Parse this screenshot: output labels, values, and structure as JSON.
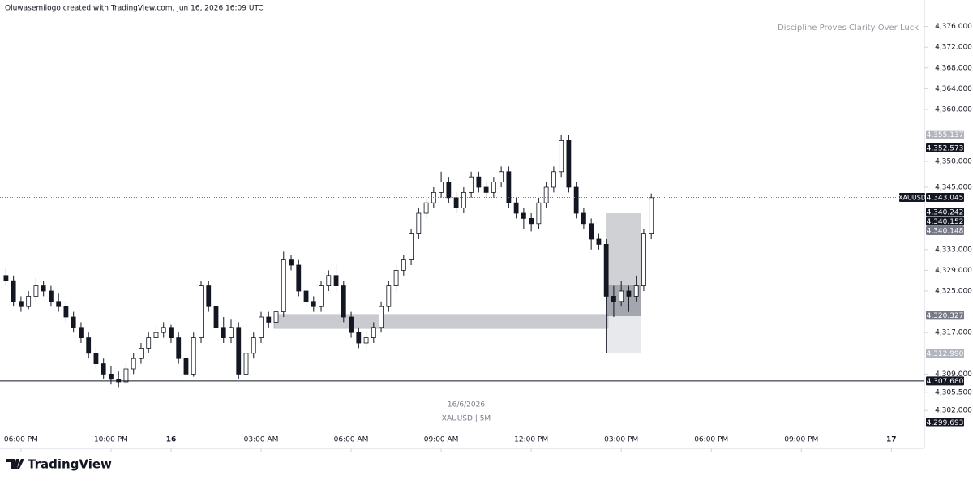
{
  "chart_data": {
    "type": "candlestick",
    "header": "Oluwasemilogo created with TradingView.com, Jun 16, 2026 16:09 UTC",
    "watermark": "Discipline Proves Clarity Over Luck",
    "date_label": "16/6/2026",
    "symbol_label": "XAUUSD | 5M",
    "symbol": "XAUUSD",
    "brand": "TradingView",
    "up_color": "#ffffff",
    "down_color": "#131722",
    "grid": false,
    "ylim": [
      4295.47,
      4381.09
    ],
    "xlim": [
      -0.8,
      122.4
    ],
    "yticks": [
      {
        "value": 4376,
        "label": "4,376.000"
      },
      {
        "value": 4372,
        "label": "4,372.000"
      },
      {
        "value": 4368,
        "label": "4,368.000"
      },
      {
        "value": 4364,
        "label": "4,364.000"
      },
      {
        "value": 4360,
        "label": "4,360.000"
      },
      {
        "value": 4350,
        "label": "4,350.000"
      },
      {
        "value": 4345,
        "label": "4,345.000"
      },
      {
        "value": 4333,
        "label": "4,333.000"
      },
      {
        "value": 4329,
        "label": "4,329.000"
      },
      {
        "value": 4325,
        "label": "4,325.000"
      },
      {
        "value": 4317,
        "label": "4,317.000"
      },
      {
        "value": 4309,
        "label": "4,309.000"
      },
      {
        "value": 4305.5,
        "label": "4,305.500"
      },
      {
        "value": 4302,
        "label": "4,302.000"
      }
    ],
    "xticks": [
      {
        "value": 2,
        "label": "06:00 PM"
      },
      {
        "value": 14,
        "label": "10:00 PM"
      },
      {
        "value": 22,
        "label": "16"
      },
      {
        "value": 34,
        "label": "03:00 AM"
      },
      {
        "value": 46,
        "label": "06:00 AM"
      },
      {
        "value": 58,
        "label": "09:00 AM"
      },
      {
        "value": 70,
        "label": "12:00 PM"
      },
      {
        "value": 82,
        "label": "03:00 PM"
      },
      {
        "value": 94,
        "label": "06:00 PM"
      },
      {
        "value": 106,
        "label": "09:00 PM"
      },
      {
        "value": 118,
        "label": "17"
      }
    ],
    "price_labels": [
      {
        "value": 4355.137,
        "label": "4,355.137",
        "bg": "#b2b5be"
      },
      {
        "value": 4352.573,
        "label": "4,352.573",
        "bg": "#131722",
        "line": "solid"
      },
      {
        "value": 4343.045,
        "label": "4,343.045",
        "bg": "#131722",
        "line": "dotted"
      },
      {
        "value": 4340.242,
        "label": "4,340.242",
        "bg": "#131722",
        "line": "solid"
      },
      {
        "value": 4340.152,
        "label": "4,340.152",
        "bg": "#131722"
      },
      {
        "value": 4340.148,
        "label": "4,340.148",
        "bg": "#787b86"
      },
      {
        "value": 4320.327,
        "label": "4,320.327",
        "bg": "#787b86"
      },
      {
        "value": 4312.99,
        "label": "4,312.990",
        "bg": "#b2b5be"
      },
      {
        "value": 4307.68,
        "label": "4,307.680",
        "bg": "#131722",
        "line": "solid"
      },
      {
        "value": 4299.693,
        "label": "4,299.693",
        "bg": "#131722"
      }
    ],
    "candles": [
      [
        4328,
        4329.5,
        4326,
        4327
      ],
      [
        4327,
        4328,
        4322,
        4323
      ],
      [
        4323,
        4324,
        4321,
        4322
      ],
      [
        4322,
        4325,
        4321.5,
        4324
      ],
      [
        4324,
        4327.5,
        4323,
        4326
      ],
      [
        4326,
        4327,
        4324,
        4325
      ],
      [
        4325,
        4326,
        4322,
        4323
      ],
      [
        4323,
        4324.5,
        4321,
        4322
      ],
      [
        4322,
        4323,
        4319,
        4320
      ],
      [
        4320,
        4321,
        4317,
        4318
      ],
      [
        4318,
        4319,
        4315,
        4316
      ],
      [
        4316,
        4317,
        4312,
        4313
      ],
      [
        4313,
        4314,
        4310,
        4311
      ],
      [
        4311,
        4312,
        4308,
        4309
      ],
      [
        4309,
        4310.5,
        4307,
        4308
      ],
      [
        4308,
        4309.5,
        4306.5,
        4307.5
      ],
      [
        4307.5,
        4311,
        4307,
        4310
      ],
      [
        4310,
        4313,
        4309,
        4312
      ],
      [
        4312,
        4315,
        4311,
        4314
      ],
      [
        4314,
        4317,
        4313,
        4316
      ],
      [
        4316,
        4318.5,
        4315,
        4317
      ],
      [
        4317,
        4319,
        4316,
        4318
      ],
      [
        4318,
        4318.5,
        4315,
        4316
      ],
      [
        4316,
        4317,
        4311,
        4312
      ],
      [
        4312,
        4313,
        4308,
        4309
      ],
      [
        4309,
        4317,
        4308.5,
        4316
      ],
      [
        4316,
        4327,
        4315,
        4326
      ],
      [
        4326,
        4327,
        4321,
        4322
      ],
      [
        4322,
        4323,
        4317,
        4318
      ],
      [
        4318,
        4320,
        4315,
        4316
      ],
      [
        4316,
        4319.5,
        4315,
        4318
      ],
      [
        4318,
        4319,
        4308,
        4309
      ],
      [
        4309,
        4314,
        4308.5,
        4313
      ],
      [
        4313,
        4317,
        4312,
        4316
      ],
      [
        4316,
        4321,
        4315,
        4320
      ],
      [
        4320,
        4321,
        4318,
        4319
      ],
      [
        4319,
        4322,
        4318,
        4321
      ],
      [
        4321,
        4332.6,
        4320,
        4331
      ],
      [
        4331,
        4332,
        4329,
        4330
      ],
      [
        4330,
        4331,
        4324,
        4325
      ],
      [
        4325,
        4326,
        4322,
        4323
      ],
      [
        4323,
        4324,
        4321,
        4322
      ],
      [
        4322,
        4327,
        4321,
        4326
      ],
      [
        4326,
        4329,
        4325,
        4328
      ],
      [
        4328,
        4330,
        4325,
        4326
      ],
      [
        4326,
        4327,
        4319,
        4320
      ],
      [
        4320,
        4321,
        4316,
        4317
      ],
      [
        4317,
        4318,
        4314,
        4315
      ],
      [
        4315,
        4317,
        4314,
        4316
      ],
      [
        4316,
        4319,
        4315,
        4318
      ],
      [
        4318,
        4323,
        4317,
        4322
      ],
      [
        4322,
        4327,
        4321,
        4326
      ],
      [
        4326,
        4330,
        4325,
        4329
      ],
      [
        4329,
        4332,
        4328,
        4331
      ],
      [
        4331,
        4337,
        4330,
        4336
      ],
      [
        4336,
        4341,
        4335,
        4340
      ],
      [
        4340,
        4343,
        4339,
        4342
      ],
      [
        4342,
        4345,
        4341,
        4344
      ],
      [
        4344,
        4348,
        4343,
        4346
      ],
      [
        4346,
        4347,
        4342,
        4343
      ],
      [
        4343,
        4344,
        4340,
        4341
      ],
      [
        4341,
        4345,
        4340,
        4344
      ],
      [
        4344,
        4348,
        4343,
        4347
      ],
      [
        4347,
        4348,
        4344,
        4345
      ],
      [
        4345,
        4346,
        4343,
        4344
      ],
      [
        4344,
        4347,
        4343,
        4346
      ],
      [
        4346,
        4349,
        4345,
        4348
      ],
      [
        4348,
        4349,
        4341,
        4342
      ],
      [
        4342,
        4343,
        4339,
        4340
      ],
      [
        4340,
        4341,
        4337,
        4339
      ],
      [
        4339,
        4340,
        4336.5,
        4338
      ],
      [
        4338,
        4343,
        4337,
        4342
      ],
      [
        4342,
        4346,
        4341,
        4345
      ],
      [
        4345,
        4349,
        4344,
        4348
      ],
      [
        4348,
        4355.1,
        4347,
        4354
      ],
      [
        4354,
        4355,
        4344,
        4345
      ],
      [
        4345,
        4346,
        4339,
        4340
      ],
      [
        4340,
        4341,
        4337,
        4338
      ],
      [
        4338,
        4339,
        4333,
        4335
      ],
      [
        4335,
        4336,
        4333,
        4334
      ],
      [
        4334,
        4335,
        4313,
        4324
      ],
      [
        4324,
        4326,
        4320,
        4323
      ],
      [
        4323,
        4327,
        4322,
        4325
      ],
      [
        4325,
        4326,
        4321,
        4324
      ],
      [
        4324,
        4328,
        4323,
        4326
      ],
      [
        4326,
        4337,
        4325,
        4336
      ],
      [
        4336,
        4343.8,
        4335,
        4343
      ]
    ]
  }
}
